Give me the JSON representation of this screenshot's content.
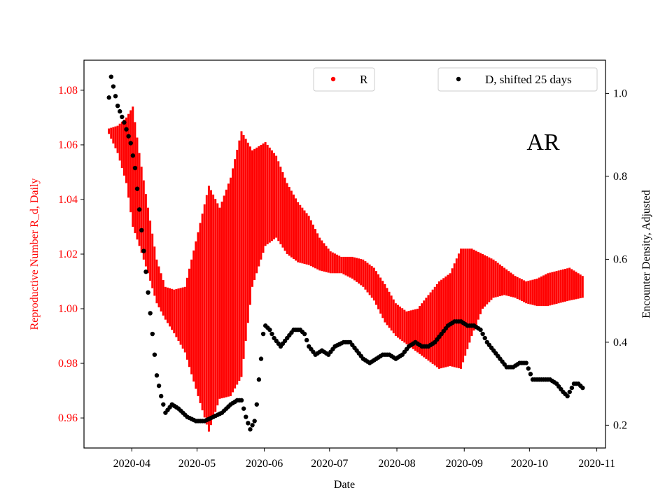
{
  "chart_data": {
    "type": "scatter",
    "state_label": "AR",
    "xlabel": "Date",
    "ylabel_left": "Reproductive Number R_d, Daily",
    "ylabel_right": "Encounter Density, Adjusted",
    "x_tick_labels": [
      "2020-04",
      "2020-05",
      "2020-06",
      "2020-07",
      "2020-08",
      "2020-09",
      "2020-10",
      "2020-11"
    ],
    "x_tick_dates": [
      "2020-04-01",
      "2020-05-01",
      "2020-06-01",
      "2020-07-01",
      "2020-08-01",
      "2020-09-01",
      "2020-10-01",
      "2020-11-01"
    ],
    "xlim": [
      "2020-03-10",
      "2020-11-05"
    ],
    "ylim_left": [
      0.949,
      1.091
    ],
    "yticks_left": [
      0.96,
      0.98,
      1.0,
      1.02,
      1.04,
      1.06,
      1.08
    ],
    "ytick_labels_left": [
      "0.96",
      "0.98",
      "1.00",
      "1.02",
      "1.04",
      "1.06",
      "1.08"
    ],
    "ylim_right": [
      0.145,
      1.08
    ],
    "yticks_right": [
      0.2,
      0.4,
      0.6,
      0.8,
      1.0
    ],
    "ytick_labels_right": [
      "0.2",
      "0.4",
      "0.6",
      "0.8",
      "1.0"
    ],
    "legend": [
      {
        "label": "R",
        "color": "#ff0000",
        "position": "top-center"
      },
      {
        "label": "D, shifted 25 days",
        "color": "#000000",
        "position": "top-right"
      }
    ],
    "colors": {
      "r_series": "#ff0000",
      "d_series": "#000000",
      "left_axis": "#ff0000",
      "right_axis": "#000000"
    },
    "series": [
      {
        "name": "R",
        "axis": "left",
        "style": "vertical-band (min-max per day)",
        "start_date": "2020-03-21",
        "end_date": "2020-10-25",
        "center_anchors": [
          [
            "2020-03-21",
            1.065
          ],
          [
            "2020-03-25",
            1.062
          ],
          [
            "2020-03-29",
            1.058
          ],
          [
            "2020-04-01",
            1.052
          ],
          [
            "2020-04-04",
            1.04
          ],
          [
            "2020-04-08",
            1.025
          ],
          [
            "2020-04-12",
            1.01
          ],
          [
            "2020-04-16",
            1.002
          ],
          [
            "2020-04-20",
            0.999
          ],
          [
            "2020-04-25",
            0.996
          ],
          [
            "2020-05-01",
            0.998
          ],
          [
            "2020-05-06",
            1.0
          ],
          [
            "2020-05-11",
            1.002
          ],
          [
            "2020-05-16",
            1.008
          ],
          [
            "2020-05-21",
            1.02
          ],
          [
            "2020-05-26",
            1.033
          ],
          [
            "2020-06-01",
            1.042
          ],
          [
            "2020-06-06",
            1.041
          ],
          [
            "2020-06-11",
            1.033
          ],
          [
            "2020-06-16",
            1.028
          ],
          [
            "2020-06-21",
            1.025
          ],
          [
            "2020-06-26",
            1.02
          ],
          [
            "2020-07-01",
            1.017
          ],
          [
            "2020-07-06",
            1.016
          ],
          [
            "2020-07-11",
            1.015
          ],
          [
            "2020-07-16",
            1.013
          ],
          [
            "2020-07-21",
            1.009
          ],
          [
            "2020-07-26",
            1.002
          ],
          [
            "2020-07-31",
            0.996
          ],
          [
            "2020-08-05",
            0.993
          ],
          [
            "2020-08-10",
            0.992
          ],
          [
            "2020-08-15",
            0.993
          ],
          [
            "2020-08-20",
            0.994
          ],
          [
            "2020-08-25",
            0.996
          ],
          [
            "2020-08-30",
            1.0
          ],
          [
            "2020-09-04",
            1.006
          ],
          [
            "2020-09-09",
            1.01
          ],
          [
            "2020-09-14",
            1.011
          ],
          [
            "2020-09-19",
            1.01
          ],
          [
            "2020-09-24",
            1.008
          ],
          [
            "2020-09-29",
            1.006
          ],
          [
            "2020-10-04",
            1.006
          ],
          [
            "2020-10-09",
            1.007
          ],
          [
            "2020-10-14",
            1.008
          ],
          [
            "2020-10-19",
            1.009
          ],
          [
            "2020-10-25",
            1.008
          ]
        ],
        "halfwidth_anchors": [
          [
            "2020-03-21",
            0.001
          ],
          [
            "2020-03-25",
            0.005
          ],
          [
            "2020-03-29",
            0.012
          ],
          [
            "2020-04-01",
            0.022
          ],
          [
            "2020-04-04",
            0.017
          ],
          [
            "2020-04-08",
            0.012
          ],
          [
            "2020-04-12",
            0.008
          ],
          [
            "2020-04-16",
            0.006
          ],
          [
            "2020-04-20",
            0.008
          ],
          [
            "2020-04-25",
            0.012
          ],
          [
            "2020-05-01",
            0.03
          ],
          [
            "2020-05-06",
            0.045
          ],
          [
            "2020-05-11",
            0.035
          ],
          [
            "2020-05-16",
            0.04
          ],
          [
            "2020-05-21",
            0.045
          ],
          [
            "2020-05-26",
            0.025
          ],
          [
            "2020-06-01",
            0.019
          ],
          [
            "2020-06-06",
            0.015
          ],
          [
            "2020-06-11",
            0.013
          ],
          [
            "2020-06-16",
            0.011
          ],
          [
            "2020-06-21",
            0.009
          ],
          [
            "2020-06-26",
            0.006
          ],
          [
            "2020-07-01",
            0.004
          ],
          [
            "2020-07-06",
            0.003
          ],
          [
            "2020-07-11",
            0.004
          ],
          [
            "2020-07-16",
            0.005
          ],
          [
            "2020-07-21",
            0.006
          ],
          [
            "2020-07-26",
            0.007
          ],
          [
            "2020-07-31",
            0.006
          ],
          [
            "2020-08-05",
            0.006
          ],
          [
            "2020-08-10",
            0.008
          ],
          [
            "2020-08-15",
            0.012
          ],
          [
            "2020-08-20",
            0.016
          ],
          [
            "2020-08-25",
            0.017
          ],
          [
            "2020-08-30",
            0.022
          ],
          [
            "2020-09-04",
            0.016
          ],
          [
            "2020-09-09",
            0.01
          ],
          [
            "2020-09-14",
            0.007
          ],
          [
            "2020-09-19",
            0.005
          ],
          [
            "2020-09-24",
            0.004
          ],
          [
            "2020-09-29",
            0.004
          ],
          [
            "2020-10-04",
            0.005
          ],
          [
            "2020-10-09",
            0.006
          ],
          [
            "2020-10-14",
            0.006
          ],
          [
            "2020-10-19",
            0.006
          ],
          [
            "2020-10-25",
            0.004
          ]
        ]
      },
      {
        "name": "D, shifted 25 days",
        "axis": "right",
        "style": "dots (daily)",
        "start_date": "2020-03-21",
        "end_date": "2020-10-25",
        "anchors": [
          [
            "2020-03-21",
            0.99
          ],
          [
            "2020-03-22",
            1.04
          ],
          [
            "2020-03-25",
            0.97
          ],
          [
            "2020-03-28",
            0.93
          ],
          [
            "2020-03-31",
            0.88
          ],
          [
            "2020-04-02",
            0.82
          ],
          [
            "2020-04-04",
            0.72
          ],
          [
            "2020-04-06",
            0.62
          ],
          [
            "2020-04-08",
            0.52
          ],
          [
            "2020-04-10",
            0.42
          ],
          [
            "2020-04-12",
            0.32
          ],
          [
            "2020-04-14",
            0.27
          ],
          [
            "2020-04-16",
            0.23
          ],
          [
            "2020-04-19",
            0.25
          ],
          [
            "2020-04-22",
            0.24
          ],
          [
            "2020-04-26",
            0.22
          ],
          [
            "2020-04-30",
            0.21
          ],
          [
            "2020-05-04",
            0.21
          ],
          [
            "2020-05-08",
            0.22
          ],
          [
            "2020-05-12",
            0.23
          ],
          [
            "2020-05-16",
            0.25
          ],
          [
            "2020-05-19",
            0.26
          ],
          [
            "2020-05-21",
            0.26
          ],
          [
            "2020-05-23",
            0.22
          ],
          [
            "2020-05-25",
            0.19
          ],
          [
            "2020-05-26",
            0.2
          ],
          [
            "2020-05-27",
            0.21
          ],
          [
            "2020-05-28",
            0.25
          ],
          [
            "2020-05-29",
            0.31
          ],
          [
            "2020-05-30",
            0.36
          ],
          [
            "2020-05-31",
            0.42
          ],
          [
            "2020-06-01",
            0.44
          ],
          [
            "2020-06-03",
            0.43
          ],
          [
            "2020-06-05",
            0.41
          ],
          [
            "2020-06-08",
            0.39
          ],
          [
            "2020-06-11",
            0.41
          ],
          [
            "2020-06-14",
            0.43
          ],
          [
            "2020-06-17",
            0.43
          ],
          [
            "2020-06-19",
            0.42
          ],
          [
            "2020-06-21",
            0.39
          ],
          [
            "2020-06-24",
            0.37
          ],
          [
            "2020-06-27",
            0.38
          ],
          [
            "2020-06-30",
            0.37
          ],
          [
            "2020-07-03",
            0.39
          ],
          [
            "2020-07-07",
            0.4
          ],
          [
            "2020-07-10",
            0.4
          ],
          [
            "2020-07-13",
            0.38
          ],
          [
            "2020-07-16",
            0.36
          ],
          [
            "2020-07-19",
            0.35
          ],
          [
            "2020-07-22",
            0.36
          ],
          [
            "2020-07-25",
            0.37
          ],
          [
            "2020-07-28",
            0.37
          ],
          [
            "2020-07-31",
            0.36
          ],
          [
            "2020-08-03",
            0.37
          ],
          [
            "2020-08-06",
            0.39
          ],
          [
            "2020-08-09",
            0.4
          ],
          [
            "2020-08-12",
            0.39
          ],
          [
            "2020-08-15",
            0.39
          ],
          [
            "2020-08-18",
            0.4
          ],
          [
            "2020-08-21",
            0.42
          ],
          [
            "2020-08-24",
            0.44
          ],
          [
            "2020-08-27",
            0.45
          ],
          [
            "2020-08-30",
            0.45
          ],
          [
            "2020-09-02",
            0.44
          ],
          [
            "2020-09-05",
            0.44
          ],
          [
            "2020-09-08",
            0.43
          ],
          [
            "2020-09-11",
            0.4
          ],
          [
            "2020-09-14",
            0.38
          ],
          [
            "2020-09-17",
            0.36
          ],
          [
            "2020-09-20",
            0.34
          ],
          [
            "2020-09-23",
            0.34
          ],
          [
            "2020-09-26",
            0.35
          ],
          [
            "2020-09-29",
            0.35
          ],
          [
            "2020-10-02",
            0.31
          ],
          [
            "2020-10-06",
            0.31
          ],
          [
            "2020-10-10",
            0.31
          ],
          [
            "2020-10-13",
            0.3
          ],
          [
            "2020-10-16",
            0.28
          ],
          [
            "2020-10-18",
            0.27
          ],
          [
            "2020-10-21",
            0.3
          ],
          [
            "2020-10-23",
            0.3
          ],
          [
            "2020-10-25",
            0.29
          ]
        ]
      }
    ]
  }
}
